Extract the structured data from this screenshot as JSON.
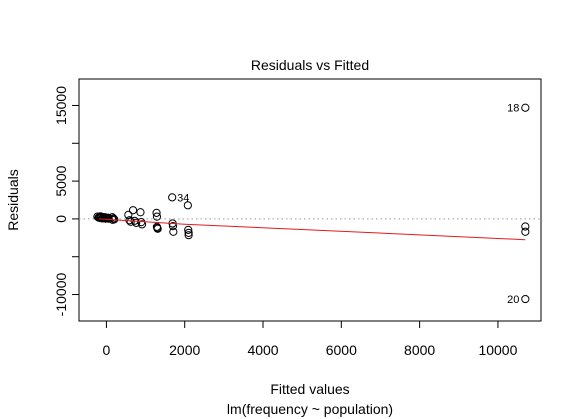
{
  "chart_data": {
    "type": "scatter",
    "title": "Residuals vs Fitted",
    "xlabel": "Fitted values",
    "subtitle": "lm(frequency ~ population)",
    "ylabel": "Residuals",
    "xlim": [
      -700,
      11100
    ],
    "ylim": [
      -13500,
      18500
    ],
    "x_ticks": [
      0,
      2000,
      4000,
      6000,
      8000,
      10000
    ],
    "x_tick_labels": [
      "0",
      "2000",
      "4000",
      "6000",
      "8000",
      "10000"
    ],
    "y_ticks": [
      -10000,
      -5000,
      0,
      5000,
      10000,
      15000
    ],
    "y_tick_labels": [
      "-10000",
      "",
      "0",
      "5000",
      "",
      "15000"
    ],
    "grid": false,
    "reference_line_y": 0,
    "smooth_line": {
      "color": "#e41a1c",
      "points": [
        [
          -200,
          0
        ],
        [
          2000,
          -700
        ],
        [
          10700,
          -2750
        ]
      ]
    },
    "points": [
      {
        "x": -230,
        "y": 300
      },
      {
        "x": -200,
        "y": 180
      },
      {
        "x": -180,
        "y": 250
      },
      {
        "x": -160,
        "y": 120
      },
      {
        "x": -140,
        "y": 200
      },
      {
        "x": -120,
        "y": 280
      },
      {
        "x": -100,
        "y": 60
      },
      {
        "x": -80,
        "y": 150
      },
      {
        "x": -60,
        "y": 100
      },
      {
        "x": -40,
        "y": 230
      },
      {
        "x": -20,
        "y": 40
      },
      {
        "x": 0,
        "y": 120
      },
      {
        "x": 20,
        "y": 80
      },
      {
        "x": 40,
        "y": 160
      },
      {
        "x": 60,
        "y": 30
      },
      {
        "x": -150,
        "y": 330
      },
      {
        "x": -90,
        "y": 220
      },
      {
        "x": -30,
        "y": 190
      },
      {
        "x": 150,
        "y": 220
      },
      {
        "x": 160,
        "y": -120
      },
      {
        "x": 180,
        "y": 60
      },
      {
        "x": 200,
        "y": -60
      },
      {
        "x": 560,
        "y": 540
      },
      {
        "x": 590,
        "y": -180
      },
      {
        "x": 620,
        "y": -380
      },
      {
        "x": 680,
        "y": 1150
      },
      {
        "x": 720,
        "y": -250
      },
      {
        "x": 760,
        "y": -520
      },
      {
        "x": 870,
        "y": 880
      },
      {
        "x": 890,
        "y": -430
      },
      {
        "x": 910,
        "y": -720
      },
      {
        "x": 1280,
        "y": 800
      },
      {
        "x": 1290,
        "y": 300
      },
      {
        "x": 1290,
        "y": -1050
      },
      {
        "x": 1300,
        "y": -1200
      },
      {
        "x": 1310,
        "y": -1300
      },
      {
        "x": 1680,
        "y": 2850,
        "label": "34"
      },
      {
        "x": 1690,
        "y": -600
      },
      {
        "x": 1700,
        "y": -950
      },
      {
        "x": 1710,
        "y": -1700
      },
      {
        "x": 2080,
        "y": 1800
      },
      {
        "x": 2090,
        "y": -1450
      },
      {
        "x": 2100,
        "y": -1850
      },
      {
        "x": 2100,
        "y": -2150
      },
      {
        "x": 10700,
        "y": 14700,
        "label": "18"
      },
      {
        "x": 10700,
        "y": -1000
      },
      {
        "x": 10700,
        "y": -1700
      },
      {
        "x": 10700,
        "y": -10600,
        "label": "20"
      }
    ]
  }
}
